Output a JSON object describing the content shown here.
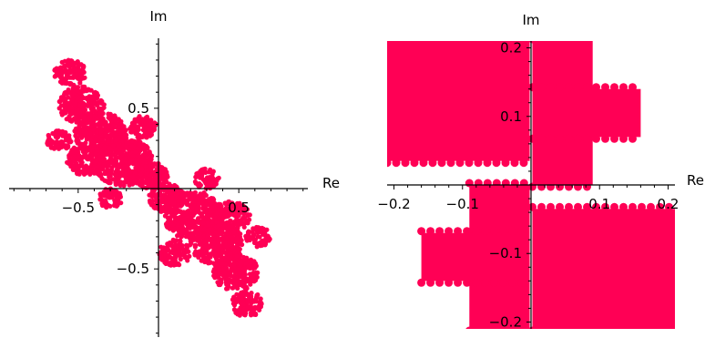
{
  "chart_data": [
    {
      "type": "scatter",
      "x_axis_label": "Re",
      "y_axis_label": "Im",
      "xlim": [
        -0.93,
        0.93
      ],
      "ylim": [
        -0.93,
        0.93
      ],
      "x_ticks": [
        {
          "value": -0.5,
          "label": "−0.5"
        },
        {
          "value": 0.5,
          "label": "0.5"
        }
      ],
      "y_ticks": [
        {
          "value": 0.5,
          "label": "0.5"
        },
        {
          "value": -0.5,
          "label": "−0.5"
        }
      ],
      "point_color": "#ff0055",
      "description_of_shape": "dragon-like fractal set of points",
      "regions": [
        {
          "cx": -0.55,
          "cy": 0.72,
          "r": 0.09
        },
        {
          "cx": -0.48,
          "cy": 0.52,
          "r": 0.13
        },
        {
          "cx": -0.36,
          "cy": 0.34,
          "r": 0.15
        },
        {
          "cx": -0.22,
          "cy": 0.17,
          "r": 0.17
        },
        {
          "cx": -0.45,
          "cy": 0.18,
          "r": 0.11
        },
        {
          "cx": -0.62,
          "cy": 0.3,
          "r": 0.07
        },
        {
          "cx": -0.1,
          "cy": 0.38,
          "r": 0.08
        },
        {
          "cx": -0.05,
          "cy": 0.08,
          "r": 0.1
        },
        {
          "cx": 0.05,
          "cy": -0.06,
          "r": 0.1
        },
        {
          "cx": 0.22,
          "cy": -0.17,
          "r": 0.17
        },
        {
          "cx": 0.36,
          "cy": -0.34,
          "r": 0.15
        },
        {
          "cx": 0.45,
          "cy": -0.18,
          "r": 0.11
        },
        {
          "cx": 0.48,
          "cy": -0.52,
          "r": 0.13
        },
        {
          "cx": 0.55,
          "cy": -0.72,
          "r": 0.09
        },
        {
          "cx": 0.1,
          "cy": -0.4,
          "r": 0.09
        },
        {
          "cx": 0.62,
          "cy": -0.3,
          "r": 0.07
        },
        {
          "cx": 0.3,
          "cy": 0.06,
          "r": 0.07
        },
        {
          "cx": -0.3,
          "cy": -0.06,
          "r": 0.07
        }
      ]
    },
    {
      "type": "scatter",
      "x_axis_label": "Re",
      "y_axis_label": "Im",
      "xlim": [
        -0.21,
        0.21
      ],
      "ylim": [
        -0.21,
        0.21
      ],
      "x_ticks": [
        {
          "value": -0.2,
          "label": "−0.2"
        },
        {
          "value": -0.1,
          "label": "−0.1"
        },
        {
          "value": 0.1,
          "label": "0.1"
        },
        {
          "value": 0.2,
          "label": "0.2"
        }
      ],
      "y_ticks": [
        {
          "value": 0.2,
          "label": "0.2"
        },
        {
          "value": 0.1,
          "label": "0.1"
        },
        {
          "value": -0.1,
          "label": "−0.1"
        },
        {
          "value": -0.2,
          "label": "−0.2"
        }
      ],
      "point_color": "#ff0055",
      "description_of_shape": "zoomed view near origin of the same fractal",
      "regions": [
        {
          "x0": -0.21,
          "y0": 0.035,
          "x1": -0.002,
          "y1": 0.21
        },
        {
          "x0": 0.002,
          "y0": -0.21,
          "x1": 0.21,
          "y1": -0.035
        },
        {
          "x0": -0.09,
          "y0": -0.21,
          "x1": -0.002,
          "y1": 0.0
        },
        {
          "x0": 0.002,
          "y0": 0.0,
          "x1": 0.09,
          "y1": 0.21
        },
        {
          "x0": 0.002,
          "y0": 0.07,
          "x1": 0.16,
          "y1": 0.14
        },
        {
          "x0": -0.16,
          "y0": -0.14,
          "x1": -0.002,
          "y1": -0.07
        }
      ]
    }
  ]
}
